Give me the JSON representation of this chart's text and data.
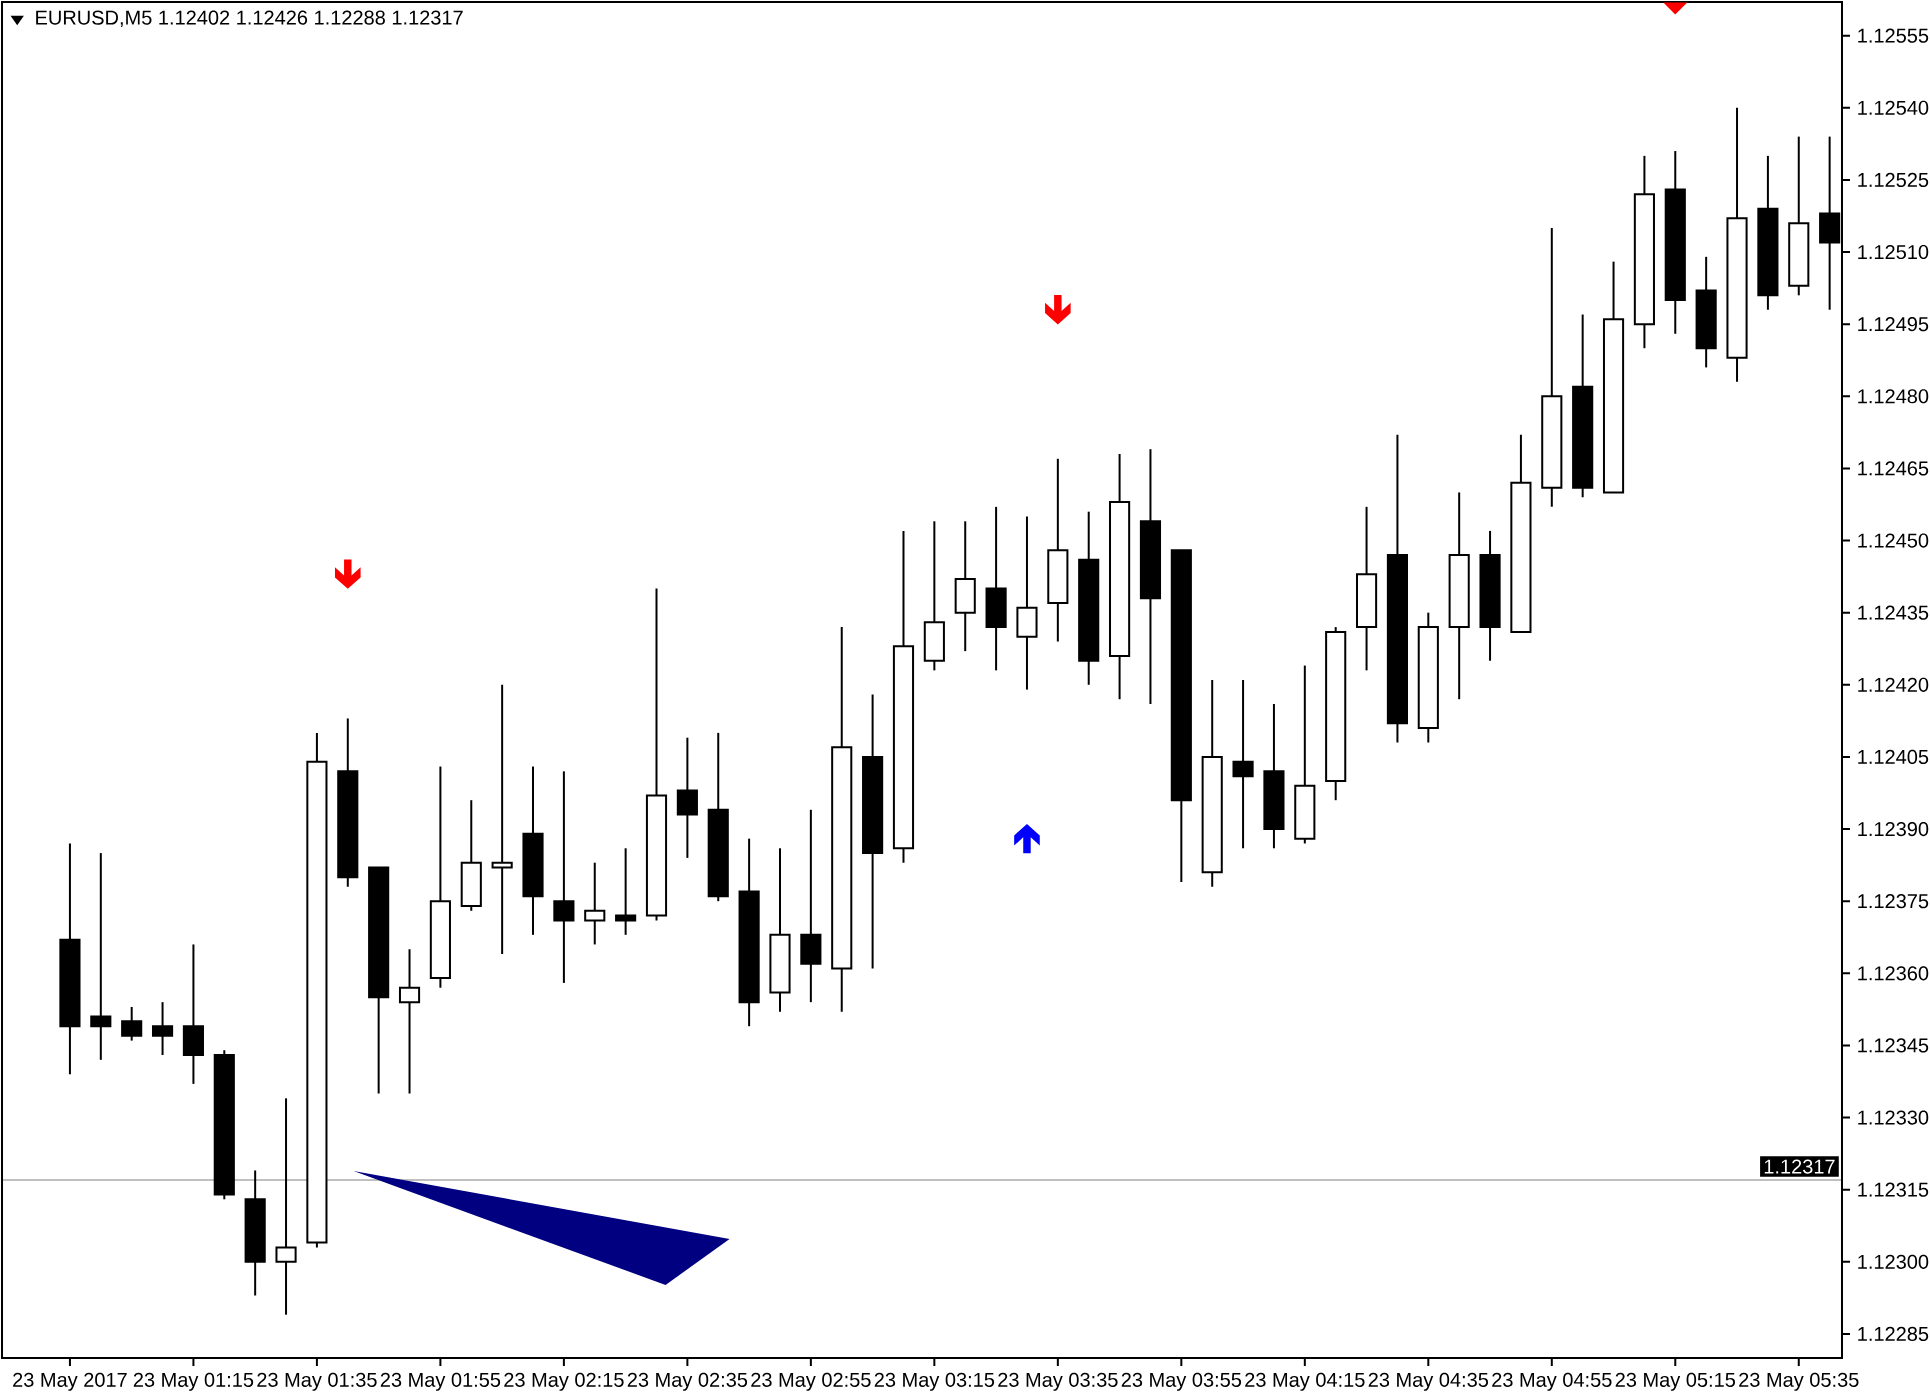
{
  "chart_data": {
    "type": "candlestick",
    "title": "EURUSD,M5  1.12402 1.12426 1.12288 1.12317",
    "categories": [
      "23 May 2017",
      null,
      null,
      null,
      "23 May 01:15",
      null,
      null,
      null,
      "23 May 01:35",
      null,
      null,
      null,
      "23 May 01:55",
      null,
      null,
      null,
      "23 May 02:15",
      null,
      null,
      null,
      "23 May 02:35",
      null,
      null,
      null,
      "23 May 02:55",
      null,
      null,
      null,
      "23 May 03:15",
      null,
      null,
      null,
      "23 May 03:35",
      null,
      null,
      null,
      "23 May 03:55",
      null,
      null,
      null,
      "23 May 04:15",
      null,
      null,
      null,
      "23 May 04:35",
      null,
      null,
      null,
      "23 May 04:55",
      null,
      null,
      null,
      "23 May 05:15",
      null,
      null,
      null,
      "23 May 05:35",
      null
    ],
    "ohlc": [
      [
        1.12367,
        1.12387,
        1.12339,
        1.12349
      ],
      [
        1.12351,
        1.12385,
        1.12342,
        1.12349
      ],
      [
        1.1235,
        1.12353,
        1.12346,
        1.12347
      ],
      [
        1.12349,
        1.12354,
        1.12343,
        1.12347
      ],
      [
        1.12349,
        1.12366,
        1.12337,
        1.12343
      ],
      [
        1.12343,
        1.12344,
        1.12313,
        1.12314
      ],
      [
        1.12313,
        1.12319,
        1.12293,
        1.123
      ],
      [
        1.123,
        1.12334,
        1.12289,
        1.12303
      ],
      [
        1.12304,
        1.1241,
        1.12303,
        1.12404
      ],
      [
        1.12402,
        1.12413,
        1.12378,
        1.1238
      ],
      [
        1.12382,
        1.12382,
        1.12335,
        1.12355
      ],
      [
        1.12354,
        1.12365,
        1.12335,
        1.12357
      ],
      [
        1.12359,
        1.12403,
        1.12357,
        1.12375
      ],
      [
        1.12374,
        1.12396,
        1.12373,
        1.12383
      ],
      [
        1.12382,
        1.1242,
        1.12364,
        1.12383
      ],
      [
        1.12389,
        1.12403,
        1.12368,
        1.12376
      ],
      [
        1.12375,
        1.12402,
        1.12358,
        1.12371
      ],
      [
        1.12371,
        1.12383,
        1.12366,
        1.12373
      ],
      [
        1.12372,
        1.12386,
        1.12368,
        1.12371
      ],
      [
        1.12372,
        1.1244,
        1.12371,
        1.12397
      ],
      [
        1.12398,
        1.12409,
        1.12384,
        1.12393
      ],
      [
        1.12394,
        1.1241,
        1.12375,
        1.12376
      ],
      [
        1.12377,
        1.12388,
        1.12349,
        1.12354
      ],
      [
        1.12356,
        1.12386,
        1.12352,
        1.12368
      ],
      [
        1.12368,
        1.12394,
        1.12354,
        1.12362
      ],
      [
        1.12361,
        1.12432,
        1.12352,
        1.12407
      ],
      [
        1.12405,
        1.12418,
        1.12361,
        1.12385
      ],
      [
        1.12386,
        1.12452,
        1.12383,
        1.12428
      ],
      [
        1.12425,
        1.12454,
        1.12423,
        1.12433
      ],
      [
        1.12435,
        1.12454,
        1.12427,
        1.12442
      ],
      [
        1.1244,
        1.12457,
        1.12423,
        1.12432
      ],
      [
        1.1243,
        1.12455,
        1.12419,
        1.12436
      ],
      [
        1.12437,
        1.12467,
        1.12429,
        1.12448
      ],
      [
        1.12446,
        1.12456,
        1.1242,
        1.12425
      ],
      [
        1.12426,
        1.12468,
        1.12417,
        1.12458
      ],
      [
        1.12454,
        1.12469,
        1.12416,
        1.12438
      ],
      [
        1.12448,
        1.12448,
        1.12379,
        1.12396
      ],
      [
        1.12381,
        1.12421,
        1.12378,
        1.12405
      ],
      [
        1.12404,
        1.12421,
        1.12386,
        1.12401
      ],
      [
        1.12402,
        1.12416,
        1.12386,
        1.1239
      ],
      [
        1.12388,
        1.12424,
        1.12387,
        1.12399
      ],
      [
        1.124,
        1.12432,
        1.12396,
        1.12431
      ],
      [
        1.12432,
        1.12457,
        1.12423,
        1.12443
      ],
      [
        1.12447,
        1.12472,
        1.12408,
        1.12412
      ],
      [
        1.12411,
        1.12435,
        1.12408,
        1.12432
      ],
      [
        1.12432,
        1.1246,
        1.12417,
        1.12447
      ],
      [
        1.12447,
        1.12452,
        1.12425,
        1.12432
      ],
      [
        1.12431,
        1.12472,
        1.12431,
        1.12462
      ],
      [
        1.12461,
        1.12515,
        1.12457,
        1.1248
      ],
      [
        1.12482,
        1.12497,
        1.12459,
        1.12461
      ],
      [
        1.1246,
        1.12508,
        1.1246,
        1.12496
      ],
      [
        1.12495,
        1.1253,
        1.1249,
        1.12522
      ],
      [
        1.12523,
        1.12531,
        1.12493,
        1.125
      ],
      [
        1.12502,
        1.12509,
        1.12486,
        1.1249
      ],
      [
        1.12488,
        1.1254,
        1.12483,
        1.12517
      ],
      [
        1.12519,
        1.1253,
        1.12498,
        1.12501
      ],
      [
        1.12503,
        1.12534,
        1.12501,
        1.12516
      ],
      [
        1.12518,
        1.12534,
        1.12498,
        1.12512
      ]
    ],
    "color": "#000000",
    "colors": [
      "#000000",
      "#000000",
      "#000000",
      "#000000",
      "#000000",
      "#000000",
      "#000000",
      "#ffffff",
      "#ffffff",
      "#000000",
      "#000000",
      "#ffffff",
      "#ffffff",
      "#ffffff",
      "#ffffff",
      "#000000",
      "#000000",
      "#ffffff",
      "#000000",
      "#ffffff",
      "#000000",
      "#000000",
      "#000000",
      "#ffffff",
      "#000000",
      "#ffffff",
      "#000000",
      "#ffffff",
      "#ffffff",
      "#ffffff",
      "#000000",
      "#ffffff",
      "#ffffff",
      "#000000",
      "#ffffff",
      "#000000",
      "#000000",
      "#ffffff",
      "#000000",
      "#000000",
      "#ffffff",
      "#ffffff",
      "#ffffff",
      "#000000",
      "#ffffff",
      "#ffffff",
      "#000000",
      "#ffffff",
      "#ffffff",
      "#000000",
      "#ffffff",
      "#ffffff",
      "#000000",
      "#000000",
      "#ffffff",
      "#000000",
      "#ffffff",
      "#000000"
    ],
    "ylim": [
      1.1228,
      1.12562
    ],
    "yticks": [
      1.12285,
      {
        "value": 1.123,
        "label": "1.12300"
      },
      1.12315,
      {
        "value": 1.1233,
        "label": "1.12330"
      },
      1.12345,
      {
        "value": 1.1236,
        "label": "1.12360"
      },
      1.12375,
      {
        "value": 1.1239,
        "label": "1.12390"
      },
      1.12405,
      {
        "value": 1.1242,
        "label": "1.12420"
      },
      1.12435,
      {
        "value": 1.1245,
        "label": "1.12450"
      },
      1.12465,
      {
        "value": 1.1248,
        "label": "1.12480"
      },
      1.12495,
      {
        "value": 1.1251,
        "label": "1.12510"
      },
      1.12525,
      {
        "value": 1.1254,
        "label": "1.12540"
      },
      1.12555
    ],
    "ref_lines": [
      {
        "axis": "y",
        "value": 1.12317,
        "label": "1.12317",
        "color": "#c0c0c0"
      }
    ]
  }
}
